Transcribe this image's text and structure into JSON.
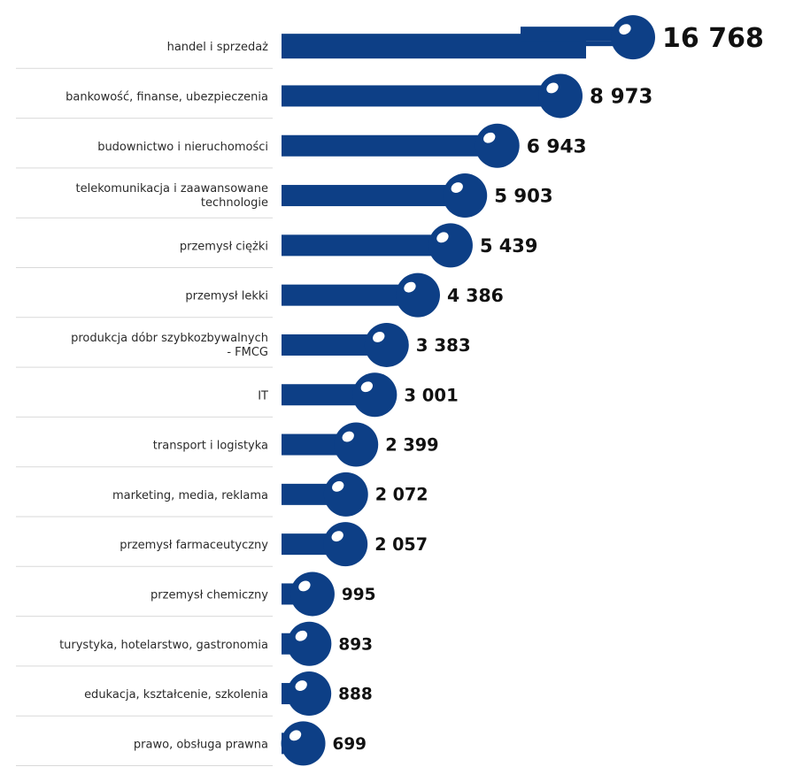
{
  "chart_data": {
    "type": "bar",
    "orientation": "horizontal",
    "categories": [
      "handel i sprzedaż",
      "bankowość, finanse, ubezpieczenia",
      "budownictwo i nieruchomości",
      "telekomunikacja i zaawansowane technologie",
      "przemysł ciężki",
      "przemysł lekki",
      "produkcja dóbr szybkozbywalnych - FMCG",
      "IT",
      "transport i logistyka",
      "marketing, media, reklama",
      "przemysł farmaceutyczny",
      "przemysł chemiczny",
      "turystyka, hotelarstwo, gastronomia",
      "edukacja, kształcenie, szkolenia",
      "prawo, obsługa prawna"
    ],
    "category_lines": [
      [
        "handel i sprzedaż"
      ],
      [
        "bankowość, finanse, ubezpieczenia"
      ],
      [
        "budownictwo i nieruchomości"
      ],
      [
        "telekomunikacja i zaawansowane",
        "technologie"
      ],
      [
        "przemysł ciężki"
      ],
      [
        "przemysł lekki"
      ],
      [
        "produkcja dóbr szybkozbywalnych",
        "- FMCG"
      ],
      [
        "IT"
      ],
      [
        "transport i logistyka"
      ],
      [
        "marketing, media, reklama"
      ],
      [
        "przemysł farmaceutyczny"
      ],
      [
        "przemysł chemiczny"
      ],
      [
        "turystyka, hotelarstwo, gastronomia"
      ],
      [
        "edukacja, kształcenie, szkolenia"
      ],
      [
        "prawo, obsługa prawna"
      ]
    ],
    "values": [
      16768,
      8973,
      6943,
      5903,
      5439,
      4386,
      3383,
      3001,
      2399,
      2072,
      2057,
      995,
      893,
      888,
      699
    ],
    "value_labels": [
      "16 768",
      "8 973",
      "6 943",
      "5 903",
      "5 439",
      "4 386",
      "3 383",
      "3 001",
      "2 399",
      "2 072",
      "2 057",
      "995",
      "893",
      "888",
      "699"
    ],
    "title": "",
    "xlabel": "",
    "ylabel": "",
    "grid": false,
    "legend": "none",
    "colors": {
      "bar": "#0d3f86",
      "highlight": "#ffffff",
      "label": "#2b2b2b",
      "value": "#111111",
      "separator": "#d9d9d9"
    }
  }
}
